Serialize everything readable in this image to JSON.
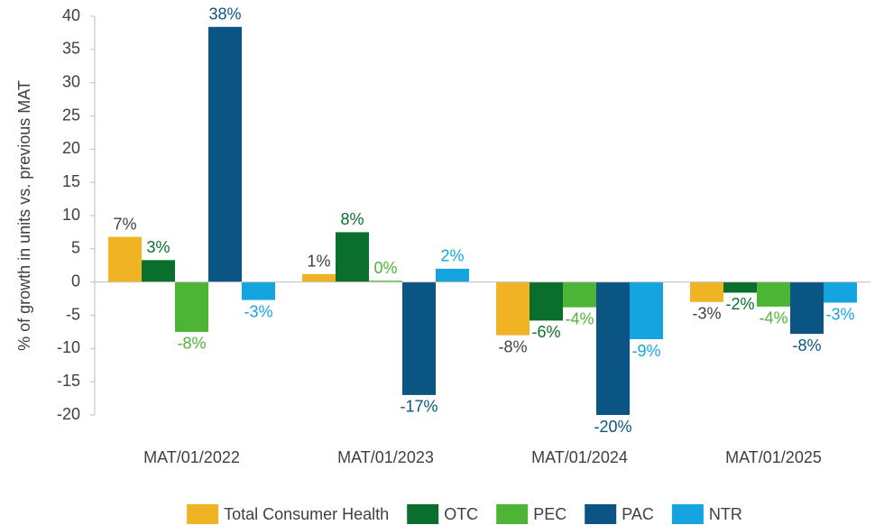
{
  "chart_data": {
    "type": "bar",
    "y_label": "% of growth in units vs. previous MAT",
    "categories": [
      "MAT/01/2022",
      "MAT/01/2023",
      "MAT/01/2024",
      "MAT/01/2025"
    ],
    "series": [
      {
        "name": "Total Consumer Health",
        "color": "#f0b323",
        "label_color": "#404040",
        "values": [
          6.8,
          1.2,
          -8,
          -3
        ],
        "value_labels": [
          "7%",
          "1%",
          "-8%",
          "-3%"
        ]
      },
      {
        "name": "OTC",
        "color": "#0a6e2c",
        "label_color": "#0a6e2c",
        "values": [
          3.3,
          7.5,
          -5.8,
          -1.6
        ],
        "value_labels": [
          "3%",
          "8%",
          "-6%",
          "-2%"
        ]
      },
      {
        "name": "PEC",
        "color": "#4cb535",
        "label_color": "#4cb535",
        "values": [
          -7.5,
          0.2,
          -3.8,
          -3.7
        ],
        "value_labels": [
          "-8%",
          "0%",
          "-4%",
          "-4%"
        ]
      },
      {
        "name": "PAC",
        "color": "#0b5585",
        "label_color": "#0b5585",
        "values": [
          38.4,
          -17,
          -20,
          -7.8
        ],
        "value_labels": [
          "38%",
          "-17%",
          "-20%",
          "-8%"
        ]
      },
      {
        "name": "NTR",
        "color": "#14a5e0",
        "label_color": "#14a5e0",
        "values": [
          -2.7,
          2,
          -8.6,
          -3.1
        ],
        "value_labels": [
          "-3%",
          "2%",
          "-9%",
          "-3%"
        ]
      }
    ],
    "ylim": [
      -20,
      40
    ],
    "yticks": [
      -20,
      -15,
      -10,
      -5,
      0,
      5,
      10,
      15,
      20,
      25,
      30,
      35,
      40
    ],
    "grid": false,
    "legend": "bottom"
  }
}
